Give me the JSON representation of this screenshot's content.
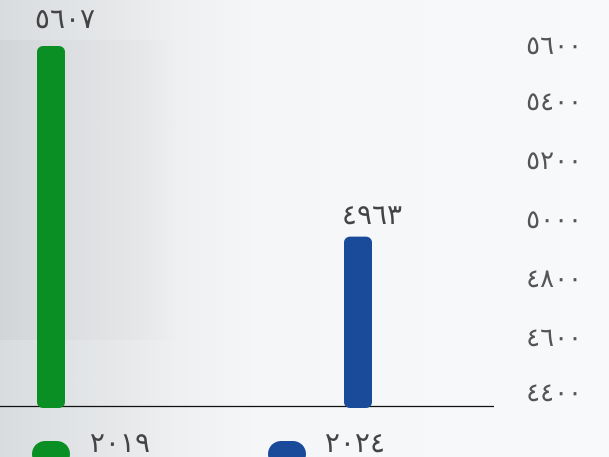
{
  "chart_data": {
    "type": "bar",
    "categories": [
      "٢٠١٩",
      "٢٠٢٤"
    ],
    "values": [
      5607,
      4963
    ],
    "value_labels": [
      "٥٦٠٧",
      "٤٩٦٣"
    ],
    "ylim": [
      4400,
      5600
    ],
    "yticks": [
      5600,
      5400,
      5200,
      5000,
      4800,
      4600,
      4400
    ],
    "ytick_labels": [
      "٥٦٠٠",
      "٥٤٠٠",
      "٥٢٠٠",
      "٥٠٠٠",
      "٤٨٠٠",
      "٤٦٠٠",
      "٤٤٠٠"
    ],
    "colors": [
      "#0a8f24",
      "#1a4a9a"
    ],
    "legend": [
      "٢٠١٩",
      "٢٠٢٤"
    ],
    "legend_position": "bottom",
    "grid": false
  }
}
